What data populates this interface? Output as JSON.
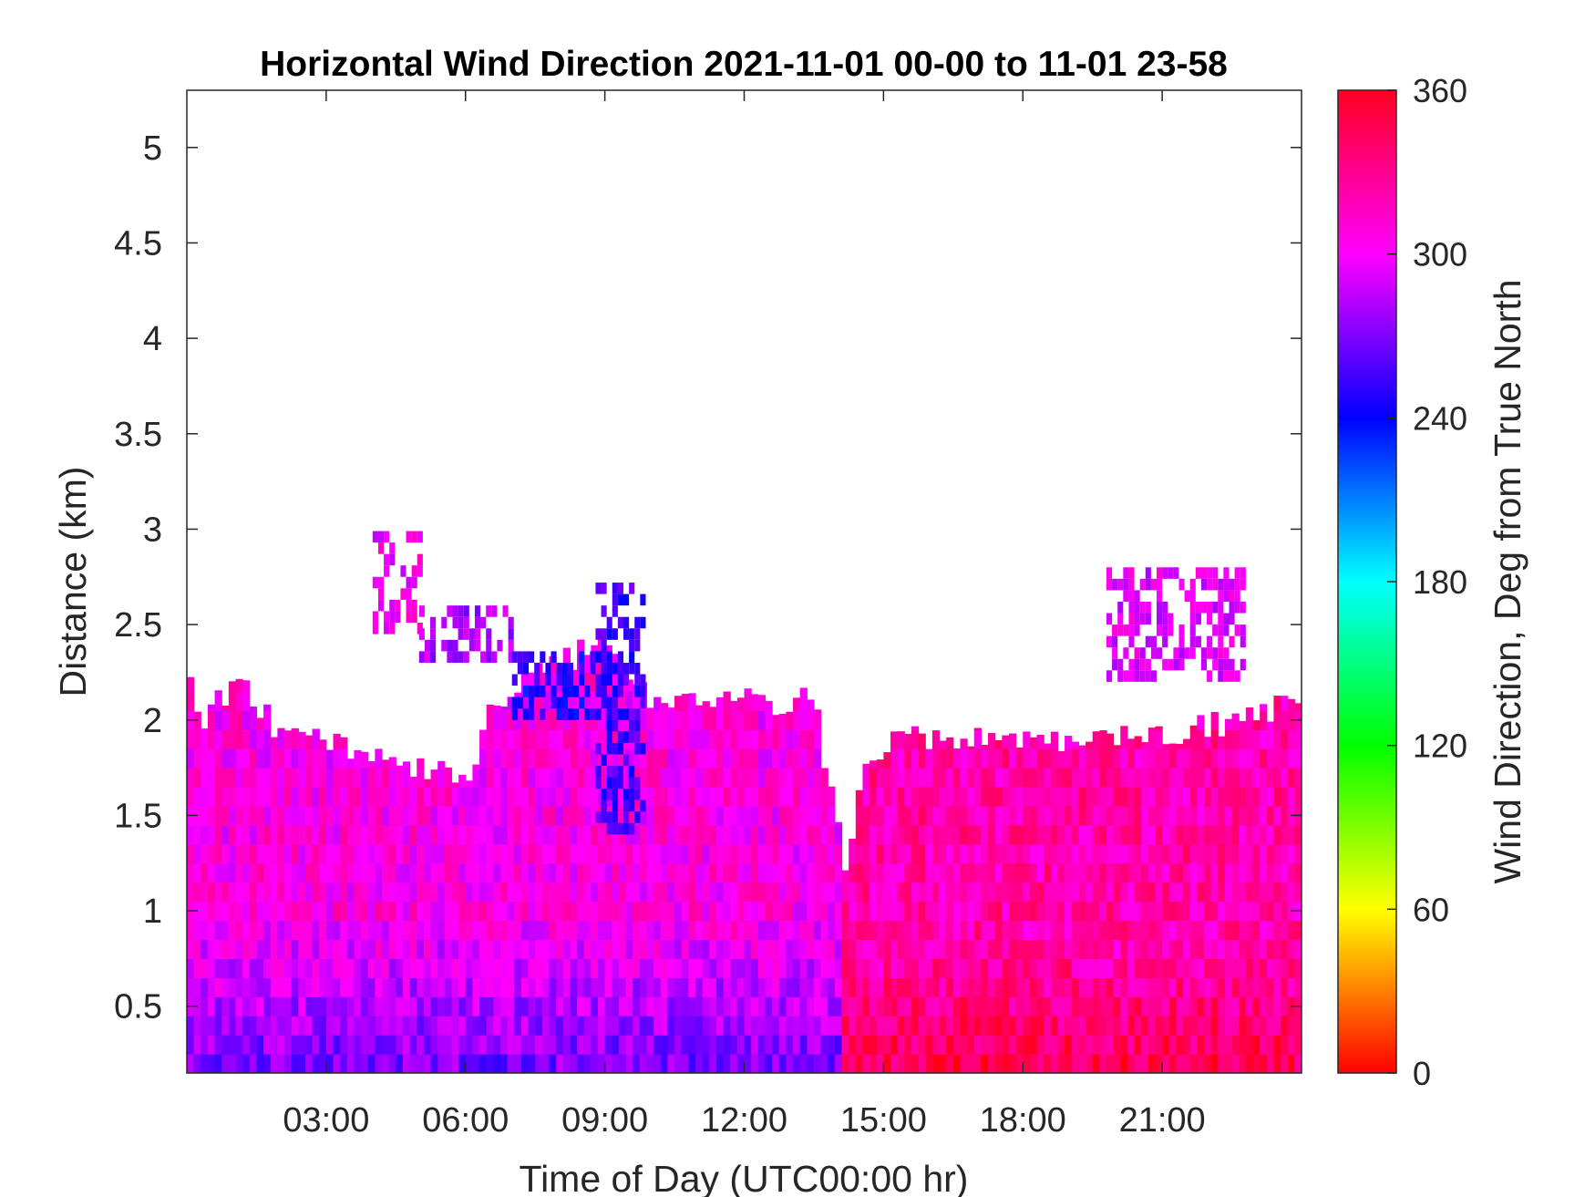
{
  "chart_data": {
    "type": "heatmap",
    "title": "Horizontal Wind Direction 2021-11-01 00-00 to 11-01 23-58",
    "xlabel": "Time of Day (UTC00:00 hr)",
    "ylabel": "Distance (km)",
    "xlim_hours": [
      0,
      24
    ],
    "ylim_km": [
      0.15,
      5.3
    ],
    "x_ticks": [
      {
        "hour": 3,
        "label": "03:00"
      },
      {
        "hour": 6,
        "label": "06:00"
      },
      {
        "hour": 9,
        "label": "09:00"
      },
      {
        "hour": 12,
        "label": "12:00"
      },
      {
        "hour": 15,
        "label": "15:00"
      },
      {
        "hour": 18,
        "label": "18:00"
      },
      {
        "hour": 21,
        "label": "21:00"
      }
    ],
    "y_ticks": [
      {
        "km": 0.5,
        "label": "0.5"
      },
      {
        "km": 1,
        "label": "1"
      },
      {
        "km": 1.5,
        "label": "1.5"
      },
      {
        "km": 2,
        "label": "2"
      },
      {
        "km": 2.5,
        "label": "2.5"
      },
      {
        "km": 3,
        "label": "3"
      },
      {
        "km": 3.5,
        "label": "3.5"
      },
      {
        "km": 4,
        "label": "4"
      },
      {
        "km": 4.5,
        "label": "4.5"
      },
      {
        "km": 5,
        "label": "5"
      }
    ],
    "colorbar": {
      "label": "Wind Direction, Deg from True North",
      "range": [
        0,
        360
      ],
      "ticks": [
        {
          "value": 0,
          "label": "0"
        },
        {
          "value": 60,
          "label": "60"
        },
        {
          "value": 120,
          "label": "120"
        },
        {
          "value": 180,
          "label": "180"
        },
        {
          "value": 240,
          "label": "240"
        },
        {
          "value": 300,
          "label": "300"
        },
        {
          "value": 360,
          "label": "360"
        }
      ],
      "colormap": "hsv"
    },
    "data_top_profile_km": [
      [
        0.0,
        2.4
      ],
      [
        0.3,
        2.0
      ],
      [
        1.0,
        2.2
      ],
      [
        1.5,
        2.1
      ],
      [
        2.0,
        1.9
      ],
      [
        3.0,
        1.9
      ],
      [
        4.0,
        1.8
      ],
      [
        5.0,
        1.75
      ],
      [
        6.0,
        1.7
      ],
      [
        6.5,
        2.0
      ],
      [
        7.0,
        2.2
      ],
      [
        8.0,
        2.3
      ],
      [
        9.0,
        2.4
      ],
      [
        10.0,
        2.1
      ],
      [
        11.0,
        2.1
      ],
      [
        12.5,
        2.1
      ],
      [
        13.5,
        2.1
      ],
      [
        14.2,
        1.2
      ],
      [
        14.6,
        1.8
      ],
      [
        15.5,
        1.9
      ],
      [
        17.0,
        1.9
      ],
      [
        19.0,
        1.9
      ],
      [
        21.0,
        1.9
      ],
      [
        22.5,
        2.0
      ],
      [
        24.0,
        2.1
      ]
    ],
    "upper_features": [
      {
        "hours": [
          4.0,
          5.0
        ],
        "km": [
          2.45,
          2.95
        ],
        "direction_deg": 300
      },
      {
        "hours": [
          5.0,
          7.0
        ],
        "km": [
          2.3,
          2.6
        ],
        "direction_deg": 280
      },
      {
        "hours": [
          7.0,
          9.0
        ],
        "km": [
          2.0,
          2.35
        ],
        "direction_deg": 245
      },
      {
        "hours": [
          8.8,
          9.8
        ],
        "km": [
          1.4,
          2.7
        ],
        "direction_deg": 255
      },
      {
        "hours": [
          19.8,
          22.8
        ],
        "km": [
          2.2,
          2.75
        ],
        "direction_deg": 295
      }
    ],
    "dominant_direction_deg": {
      "low_levels_morning": 270,
      "mid_levels": 305,
      "afternoon": 320,
      "near_surface_afternoon": 340
    }
  }
}
